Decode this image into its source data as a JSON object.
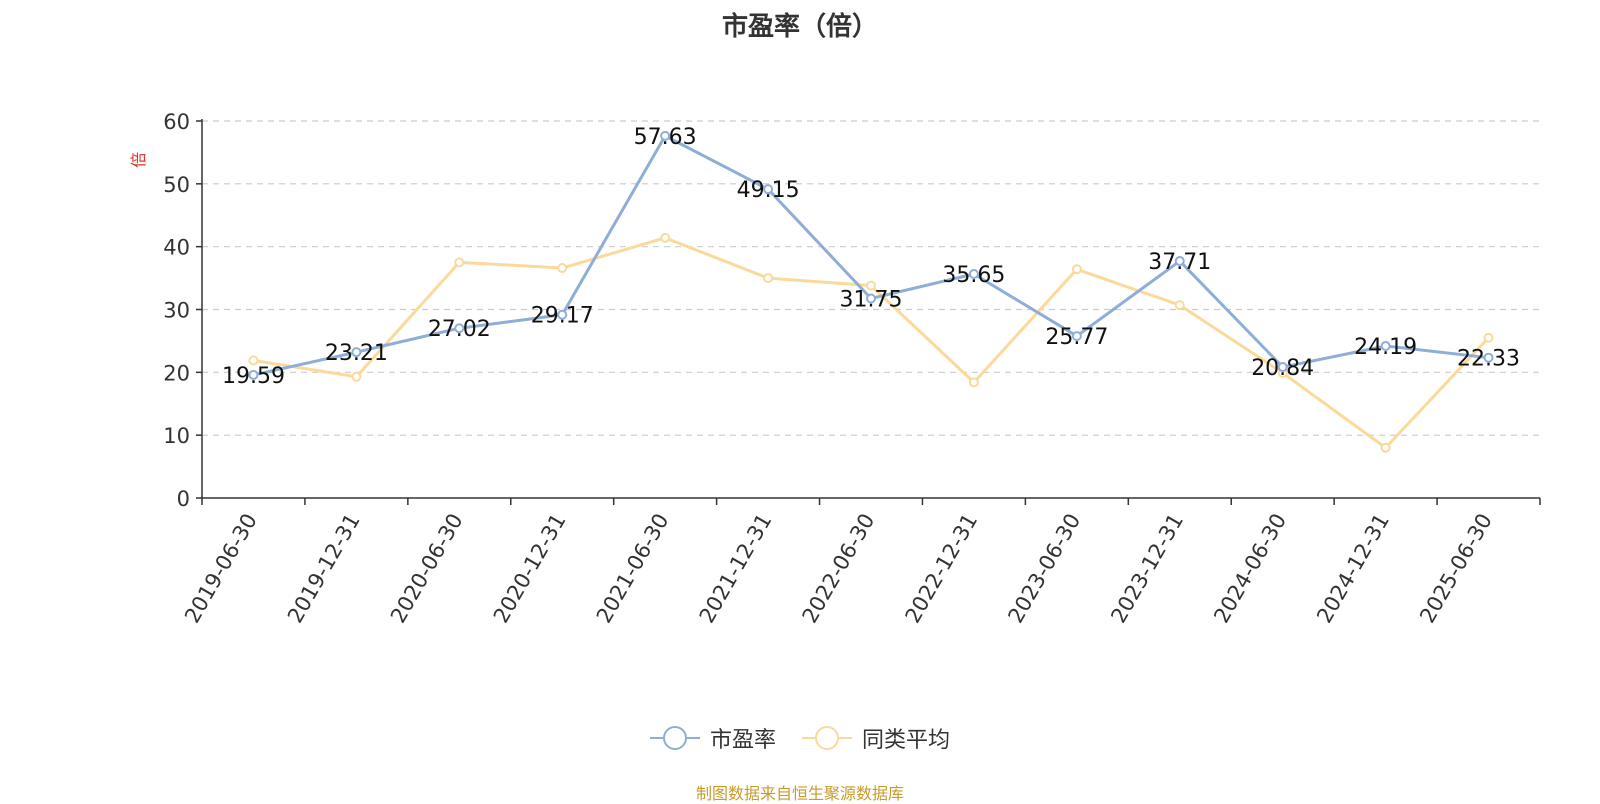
{
  "chart_data": {
    "type": "line",
    "title": "市盈率（倍）",
    "ylabel": "倍",
    "ylim": [
      0,
      60
    ],
    "yticks": [
      0,
      10,
      20,
      30,
      40,
      50,
      60
    ],
    "grid": true,
    "legend_position": "bottom",
    "categories": [
      "2019-06-30",
      "2019-12-31",
      "2020-06-30",
      "2020-12-31",
      "2021-06-30",
      "2021-12-31",
      "2022-06-30",
      "2022-12-31",
      "2023-06-30",
      "2023-12-31",
      "2024-06-30",
      "2024-12-31",
      "2025-06-30"
    ],
    "series": [
      {
        "name": "市盈率",
        "color": "#8eaed8",
        "values": [
          19.59,
          23.21,
          27.02,
          29.17,
          57.63,
          49.15,
          31.75,
          35.65,
          25.77,
          37.71,
          20.84,
          24.19,
          22.33
        ],
        "data_labels": [
          "19.59",
          "23.21",
          "27.02",
          "29.17",
          "57.63",
          "49.15",
          "31.75",
          "35.65",
          "25.77",
          "37.71",
          "20.84",
          "24.19",
          "22.33"
        ]
      },
      {
        "name": "同类平均",
        "color": "#fbd99a",
        "values": [
          21.9,
          19.3,
          37.5,
          36.6,
          41.4,
          35.0,
          33.8,
          18.4,
          36.4,
          30.7,
          19.9,
          8.0,
          25.5
        ]
      }
    ]
  },
  "source": "制图数据来自恒生聚源数据库"
}
